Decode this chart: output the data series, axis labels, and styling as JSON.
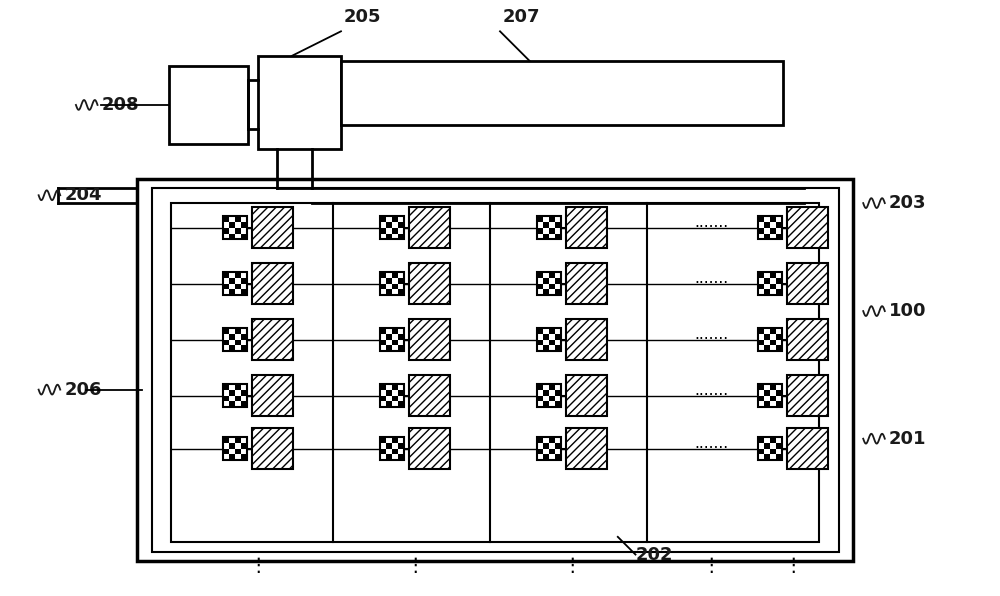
{
  "bg_color": "#ffffff",
  "fig_width": 10.0,
  "fig_height": 5.96,
  "lc": "#1a1a1a"
}
